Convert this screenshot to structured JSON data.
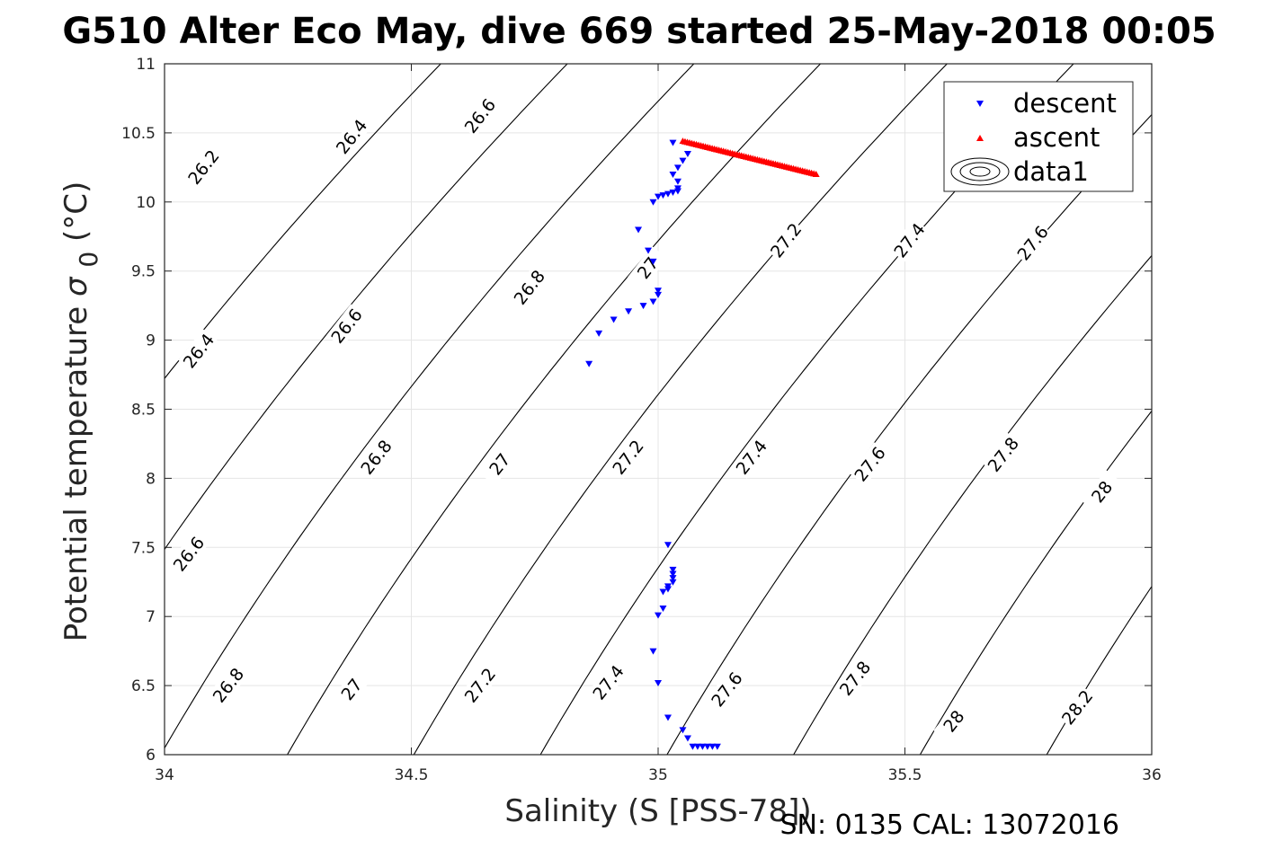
{
  "title": "G510 Alter Eco May, dive 669 started 25-May-2018 00:05",
  "footer": "SN: 0135  CAL: 13072016",
  "chart_data": {
    "type": "scatter",
    "xlabel": "Salinity (S [PSS-78])",
    "ylabel_main": "Potential temperature",
    "ylabel_symbol": "σ",
    "ylabel_sub": "0",
    "ylabel_unit": "(°C)",
    "xlim": [
      34,
      36
    ],
    "ylim": [
      6,
      11
    ],
    "xticks": [
      "34",
      "34.5",
      "35",
      "35.5",
      "36"
    ],
    "yticks": [
      "6",
      "6.5",
      "7",
      "7.5",
      "8",
      "8.5",
      "9",
      "9.5",
      "10",
      "10.5",
      "11"
    ],
    "grid": true,
    "legend_position": "top-right",
    "legend": [
      "descent",
      "ascent",
      "data1"
    ],
    "colors": {
      "descent": "#0000ff",
      "ascent": "#ff0000",
      "contour": "#000000",
      "grid": "#e5e5e5",
      "axis": "#262626"
    },
    "contour_levels": [
      "26.2",
      "26.4",
      "26.6",
      "26.8",
      "27",
      "27.2",
      "27.4",
      "27.6",
      "27.8",
      "28",
      "28.2"
    ],
    "contour_labels": [
      {
        "text": "26.2",
        "s": 34.08,
        "t": 10.25
      },
      {
        "text": "26.4",
        "s": 34.38,
        "t": 10.47
      },
      {
        "text": "26.6",
        "s": 34.64,
        "t": 10.62
      },
      {
        "text": "26.4",
        "s": 34.07,
        "t": 8.92
      },
      {
        "text": "26.6",
        "s": 34.37,
        "t": 9.1
      },
      {
        "text": "26.8",
        "s": 34.74,
        "t": 9.38
      },
      {
        "text": "27",
        "s": 34.98,
        "t": 9.52
      },
      {
        "text": "27.2",
        "s": 35.26,
        "t": 9.72
      },
      {
        "text": "27.4",
        "s": 35.51,
        "t": 9.72
      },
      {
        "text": "27.6",
        "s": 35.76,
        "t": 9.7
      },
      {
        "text": "26.6",
        "s": 34.05,
        "t": 7.45
      },
      {
        "text": "26.8",
        "s": 34.43,
        "t": 8.15
      },
      {
        "text": "27",
        "s": 34.68,
        "t": 8.1
      },
      {
        "text": "27.2",
        "s": 34.94,
        "t": 8.15
      },
      {
        "text": "27.4",
        "s": 35.19,
        "t": 8.15
      },
      {
        "text": "27.6",
        "s": 35.43,
        "t": 8.1
      },
      {
        "text": "27.8",
        "s": 35.7,
        "t": 8.17
      },
      {
        "text": "28",
        "s": 35.9,
        "t": 7.9
      },
      {
        "text": "26.8",
        "s": 34.13,
        "t": 6.5
      },
      {
        "text": "27",
        "s": 34.38,
        "t": 6.47
      },
      {
        "text": "27.2",
        "s": 34.64,
        "t": 6.5
      },
      {
        "text": "27.4",
        "s": 34.9,
        "t": 6.52
      },
      {
        "text": "27.6",
        "s": 35.14,
        "t": 6.47
      },
      {
        "text": "27.8",
        "s": 35.4,
        "t": 6.55
      },
      {
        "text": "28",
        "s": 35.6,
        "t": 6.24
      },
      {
        "text": "28.2",
        "s": 35.85,
        "t": 6.34
      }
    ],
    "series": [
      {
        "name": "descent",
        "marker": "triangle-down",
        "x": [
          34.86,
          34.88,
          34.91,
          34.94,
          34.97,
          34.99,
          35.0,
          35.0,
          34.99,
          34.98,
          34.96,
          34.99,
          35.0,
          35.01,
          35.02,
          35.03,
          35.04,
          35.04,
          35.04,
          35.03,
          35.04,
          35.05,
          35.06,
          35.03,
          35.02,
          35.03,
          35.03,
          35.03,
          35.03,
          35.02,
          35.02,
          35.01,
          35.01,
          35.0,
          34.99,
          35.0,
          35.02,
          35.05,
          35.06,
          35.07,
          35.08,
          35.09,
          35.1,
          35.11,
          35.12
        ],
        "y": [
          8.83,
          9.05,
          9.15,
          9.21,
          9.25,
          9.28,
          9.33,
          9.36,
          9.57,
          9.65,
          9.8,
          10.0,
          10.04,
          10.05,
          10.06,
          10.07,
          10.08,
          10.1,
          10.15,
          10.2,
          10.25,
          10.3,
          10.35,
          10.43,
          7.52,
          7.34,
          7.31,
          7.28,
          7.25,
          7.22,
          7.2,
          7.18,
          7.06,
          7.01,
          6.75,
          6.52,
          6.27,
          6.18,
          6.12,
          6.06,
          6.06,
          6.06,
          6.06,
          6.06,
          6.06
        ]
      },
      {
        "name": "ascent",
        "marker": "triangle-up",
        "x_start": 35.05,
        "y_start": 10.44,
        "x_end": 35.32,
        "y_end": 10.2,
        "points": 60
      }
    ]
  }
}
